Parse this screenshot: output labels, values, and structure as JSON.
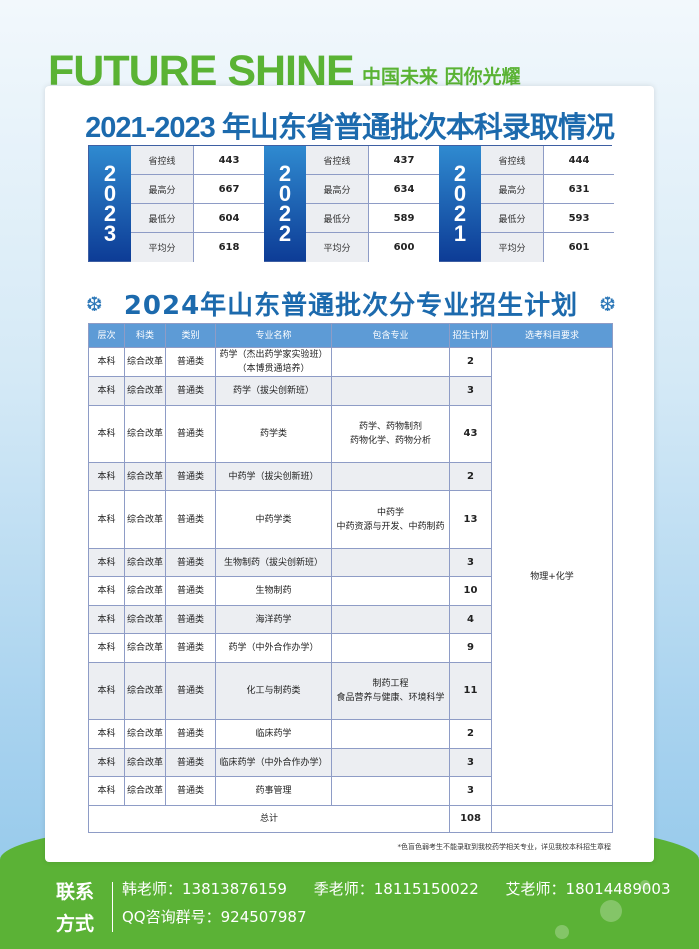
{
  "header": {
    "brand": "FUTURE SHINE",
    "slogan": "中国未来 因你光耀"
  },
  "history": {
    "title": "2021-2023 年山东省普通批次本科录取情况",
    "labels": [
      "省控线",
      "最高分",
      "最低分",
      "平均分"
    ],
    "years": [
      {
        "year": "2023",
        "values": [
          "443",
          "667",
          "604",
          "618"
        ]
      },
      {
        "year": "2022",
        "values": [
          "437",
          "634",
          "589",
          "600"
        ]
      },
      {
        "year": "2021",
        "values": [
          "444",
          "631",
          "593",
          "601"
        ]
      }
    ]
  },
  "plan": {
    "title": "2024年山东普通批次分专业招生计划",
    "snowflake_icon": "snowflake-icon",
    "headers": [
      "层次",
      "科类",
      "类别",
      "专业名称",
      "包含专业",
      "招生计划",
      "选考科目要求"
    ],
    "rows": [
      {
        "level": "本科",
        "type": "综合改革",
        "cat": "普通类",
        "major": "药学（杰出药学家实验班）（本博贯通培养）",
        "includes": "",
        "plan": "2"
      },
      {
        "level": "本科",
        "type": "综合改革",
        "cat": "普通类",
        "major": "药学（拔尖创新班）",
        "includes": "",
        "plan": "3"
      },
      {
        "level": "本科",
        "type": "综合改革",
        "cat": "普通类",
        "major": "药学类",
        "includes": "药学、药物制剂 药物化学、药物分析",
        "plan": "43"
      },
      {
        "level": "本科",
        "type": "综合改革",
        "cat": "普通类",
        "major": "中药学（拔尖创新班）",
        "includes": "",
        "plan": "2"
      },
      {
        "level": "本科",
        "type": "综合改革",
        "cat": "普通类",
        "major": "中药学类",
        "includes": "中药学 中药资源与开发、中药制药",
        "plan": "13"
      },
      {
        "level": "本科",
        "type": "综合改革",
        "cat": "普通类",
        "major": "生物制药（拔尖创新班）",
        "includes": "",
        "plan": "3"
      },
      {
        "level": "本科",
        "type": "综合改革",
        "cat": "普通类",
        "major": "生物制药",
        "includes": "",
        "plan": "10"
      },
      {
        "level": "本科",
        "type": "综合改革",
        "cat": "普通类",
        "major": "海洋药学",
        "includes": "",
        "plan": "4"
      },
      {
        "level": "本科",
        "type": "综合改革",
        "cat": "普通类",
        "major": "药学（中外合作办学）",
        "includes": "",
        "plan": "9"
      },
      {
        "level": "本科",
        "type": "综合改革",
        "cat": "普通类",
        "major": "化工与制药类",
        "includes": "制药工程 食品营养与健康、环境科学",
        "plan": "11"
      },
      {
        "level": "本科",
        "type": "综合改革",
        "cat": "普通类",
        "major": "临床药学",
        "includes": "",
        "plan": "2"
      },
      {
        "level": "本科",
        "type": "综合改革",
        "cat": "普通类",
        "major": "临床药学（中外合作办学）",
        "includes": "",
        "plan": "3"
      },
      {
        "level": "本科",
        "type": "综合改革",
        "cat": "普通类",
        "major": "药事管理",
        "includes": "",
        "plan": "3"
      }
    ],
    "requirement": "物理+化学",
    "total_label": "总计",
    "total": "108",
    "note": "*色盲色弱考生不能录取到我校药学相关专业，详见我校本科招生章程"
  },
  "contact": {
    "label": "联系方式",
    "teachers": [
      "韩老师：13813876159",
      "季老师：18115150022",
      "艾老师：18014489003"
    ],
    "qq": "QQ咨询群号：924507987"
  },
  "colors": {
    "brand_green": "#5ab334",
    "title_blue": "#1c6aad",
    "header_blue": "#5d9bd6",
    "year_blue": "#0d3c96"
  }
}
